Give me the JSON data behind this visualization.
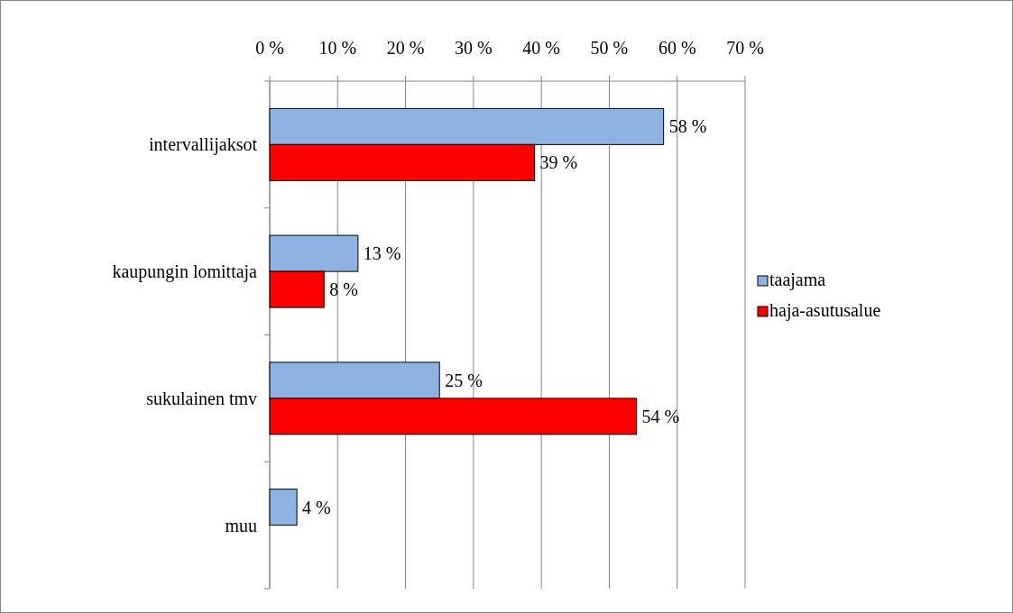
{
  "chart_data": {
    "type": "bar",
    "orientation": "horizontal",
    "categories": [
      "intervallijaksot",
      "kaupungin lomittaja",
      "sukulainen tmv",
      "muu"
    ],
    "series": [
      {
        "name": "taajama",
        "color": "#8db3e2",
        "values": [
          58,
          13,
          25,
          4
        ],
        "value_labels": [
          "58 %",
          "13 %",
          "25 %",
          "4 %"
        ]
      },
      {
        "name": "haja-asutusalue",
        "color": "#ff0000",
        "values": [
          39,
          8,
          54,
          null
        ],
        "value_labels": [
          "39 %",
          "8 %",
          "54 %",
          null
        ]
      }
    ],
    "xlim": [
      0,
      70
    ],
    "xticks": [
      {
        "value": 0,
        "label": "0 %"
      },
      {
        "value": 10,
        "label": "10 %"
      },
      {
        "value": 20,
        "label": "20 %"
      },
      {
        "value": 30,
        "label": "30 %"
      },
      {
        "value": 40,
        "label": "40 %"
      },
      {
        "value": 50,
        "label": "50 %"
      },
      {
        "value": 60,
        "label": "60 %"
      },
      {
        "value": 70,
        "label": "70 %"
      }
    ],
    "grid": "x",
    "legend": "right"
  }
}
